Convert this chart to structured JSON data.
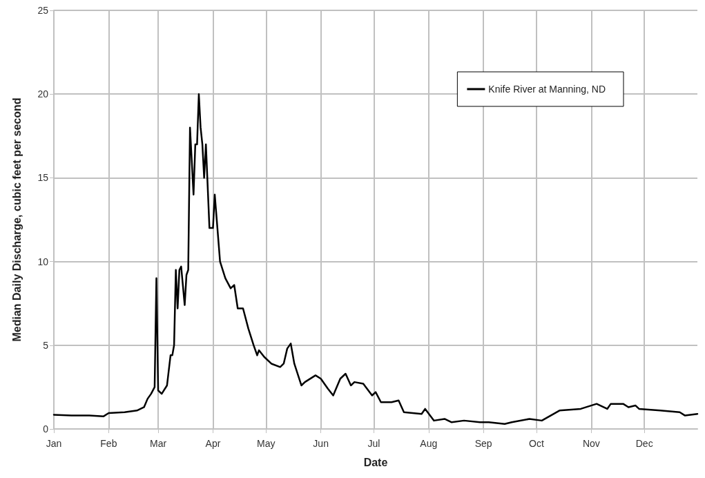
{
  "chart_data": {
    "type": "line",
    "xlabel": "Date",
    "ylabel": "Median Daily Discharge, cubic feet per second",
    "x": [
      "--01-01",
      "--01-11",
      "--01-21",
      "--01-29",
      "--02-01",
      "--02-10",
      "--02-17",
      "--02-21",
      "--02-23",
      "--02-25",
      "--02-27",
      "--02-28",
      "--03-01",
      "--03-03",
      "--03-06",
      "--03-08",
      "--03-09",
      "--03-10",
      "--03-11",
      "--03-12",
      "--03-13",
      "--03-14",
      "--03-16",
      "--03-17",
      "--03-18",
      "--03-19",
      "--03-21",
      "--03-22",
      "--03-23",
      "--03-24",
      "--03-25",
      "--03-26",
      "--03-27",
      "--03-28",
      "--03-30",
      "--04-01",
      "--04-02",
      "--04-05",
      "--04-08",
      "--04-11",
      "--04-13",
      "--04-15",
      "--04-18",
      "--04-21",
      "--04-24",
      "--04-26",
      "--04-27",
      "--04-30",
      "--05-04",
      "--05-09",
      "--05-11",
      "--05-13",
      "--05-15",
      "--05-17",
      "--05-21",
      "--05-23",
      "--05-29",
      "--06-01",
      "--06-05",
      "--06-08",
      "--06-12",
      "--06-15",
      "--06-18",
      "--06-20",
      "--06-25",
      "--06-30",
      "--07-02",
      "--07-05",
      "--07-11",
      "--07-15",
      "--07-18",
      "--07-28",
      "--07-30",
      "--08-04",
      "--08-10",
      "--08-14",
      "--08-21",
      "--08-30",
      "--09-04",
      "--09-13",
      "--09-17",
      "--09-27",
      "--10-04",
      "--10-14",
      "--10-26",
      "--11-04",
      "--11-10",
      "--11-12",
      "--11-19",
      "--11-22",
      "--11-26",
      "--11-28",
      "--12-10",
      "--12-21",
      "--12-24",
      "--12-31"
    ],
    "series": [
      {
        "name": "Knife River at Manning, ND",
        "color": "#000000",
        "values": [
          0.85,
          0.8,
          0.8,
          0.75,
          0.95,
          1.0,
          1.1,
          1.3,
          1.8,
          2.1,
          2.5,
          9.0,
          2.3,
          2.1,
          2.6,
          4.4,
          4.4,
          5.0,
          9.5,
          7.2,
          9.5,
          9.7,
          7.4,
          9.2,
          9.5,
          18,
          14,
          17,
          17,
          20,
          18,
          17,
          15,
          17,
          12,
          12,
          14,
          10,
          9,
          8.4,
          8.6,
          7.2,
          7.2,
          6,
          5.0,
          4.4,
          4.7,
          4.3,
          3.9,
          3.7,
          3.9,
          4.8,
          5.1,
          3.9,
          2.6,
          2.8,
          3.2,
          3.0,
          2.4,
          2.0,
          3.0,
          3.3,
          2.6,
          2.8,
          2.7,
          2.0,
          2.2,
          1.6,
          1.6,
          1.7,
          1.0,
          0.9,
          1.2,
          0.5,
          0.6,
          0.4,
          0.5,
          0.4,
          0.4,
          0.3,
          0.4,
          0.6,
          0.5,
          1.1,
          1.2,
          1.5,
          1.2,
          1.5,
          1.5,
          1.3,
          1.4,
          1.2,
          1.1,
          1.0,
          0.8,
          0.9
        ]
      }
    ],
    "xlim": [
      "--01-01",
      "--12-31"
    ],
    "xticks": [
      {
        "value": "--01-01",
        "label": "Jan"
      },
      {
        "value": "--02-01",
        "label": "Feb"
      },
      {
        "value": "--03-01",
        "label": "Mar"
      },
      {
        "value": "--04-01",
        "label": "Apr"
      },
      {
        "value": "--05-01",
        "label": "May"
      },
      {
        "value": "--06-01",
        "label": "Jun"
      },
      {
        "value": "--07-01",
        "label": "Jul"
      },
      {
        "value": "--08-01",
        "label": "Aug"
      },
      {
        "value": "--09-01",
        "label": "Sep"
      },
      {
        "value": "--10-01",
        "label": "Oct"
      },
      {
        "value": "--11-01",
        "label": "Nov"
      },
      {
        "value": "--12-01",
        "label": "Dec"
      }
    ],
    "ylim": [
      0,
      25
    ],
    "yticks": [
      0,
      5,
      10,
      15,
      20,
      25
    ],
    "grid": true,
    "legend": "top right",
    "marker": "none",
    "line_style": "solid"
  }
}
